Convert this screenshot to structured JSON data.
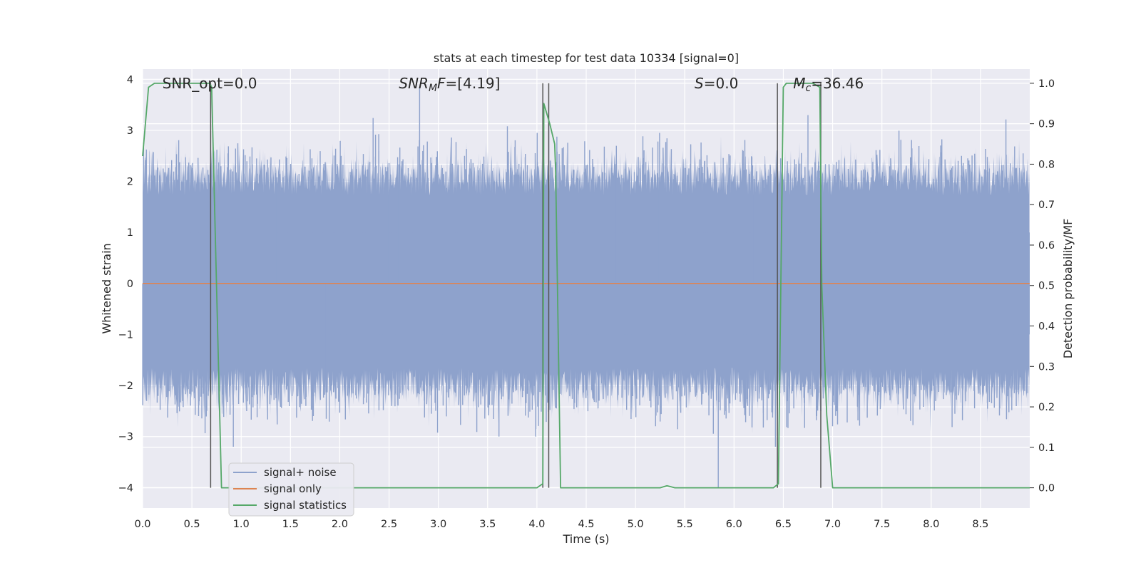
{
  "chart_data": {
    "type": "line",
    "title": "stats at each timestep for test data 10334 [signal=0]",
    "xlabel": "Time (s)",
    "ylabel_left": "Whitened strain",
    "ylabel_right": "Detection probability/MF",
    "xlim": [
      0.0,
      9.0
    ],
    "ylim_left": [
      -4.4,
      4.2
    ],
    "ylim_right": [
      -0.05,
      1.035
    ],
    "x_ticks": [
      0.0,
      0.5,
      1.0,
      1.5,
      2.0,
      2.5,
      3.0,
      3.5,
      4.0,
      4.5,
      5.0,
      5.5,
      6.0,
      6.5,
      7.0,
      7.5,
      8.0,
      8.5
    ],
    "x_tick_labels": [
      "0.0",
      "0.5",
      "1.0",
      "1.5",
      "2.0",
      "2.5",
      "3.0",
      "3.5",
      "4.0",
      "4.5",
      "5.0",
      "5.5",
      "6.0",
      "6.5",
      "7.0",
      "7.5",
      "8.0",
      "8.5"
    ],
    "y_left_ticks": [
      4,
      3,
      2,
      1,
      0,
      -1,
      -2,
      -3,
      -4
    ],
    "y_left_tick_labels": [
      "4",
      "3",
      "2",
      "1",
      "0",
      "−1",
      "−2",
      "−3",
      "−4"
    ],
    "y_right_ticks": [
      1.0,
      0.9,
      0.8,
      0.7,
      0.6,
      0.5,
      0.4,
      0.3,
      0.2,
      0.1,
      0.0
    ],
    "y_right_tick_labels": [
      "1.0",
      "0.9",
      "0.8",
      "0.7",
      "0.6",
      "0.5",
      "0.4",
      "0.3",
      "0.2",
      "0.1",
      "0.0"
    ],
    "grid": true,
    "legend_position": "lower-left",
    "annotations": [
      {
        "text": "SNR_opt=0.0",
        "x": 0.2
      },
      {
        "text": "SNR_MF=[4.19]",
        "x": 2.6,
        "math": "mf"
      },
      {
        "text": "S=0.0",
        "x": 5.6,
        "math": "s"
      },
      {
        "text": "M_c=36.46",
        "x": 6.6,
        "math": "mc"
      }
    ],
    "series": [
      {
        "name": "signal+ noise",
        "axis": "left",
        "color": "#8ea2cc",
        "kind": "noise",
        "sampling_rate": 4096,
        "envelope_low": -2.2,
        "envelope_high": 2.3,
        "notable_peaks": [
          {
            "x": 2.81,
            "y": 3.85
          },
          {
            "x": 4.12,
            "y": 3.2
          },
          {
            "x": 6.75,
            "y": 3.3
          },
          {
            "x": 5.84,
            "y": -4.0
          },
          {
            "x": 0.92,
            "y": -3.2
          },
          {
            "x": 6.42,
            "y": -3.2
          }
        ]
      },
      {
        "name": "signal only",
        "axis": "left",
        "color": "#dd8452",
        "x": [
          0.0,
          9.0
        ],
        "y": [
          0.0,
          0.0
        ]
      },
      {
        "name": "signal statistics",
        "axis": "right",
        "color": "#55a868",
        "x": [
          0.0,
          0.06,
          0.12,
          0.6,
          0.68,
          0.7,
          0.8,
          4.0,
          4.06,
          4.07,
          4.13,
          4.18,
          4.19,
          4.24,
          5.25,
          5.32,
          5.4,
          6.4,
          6.45,
          6.5,
          6.53,
          6.8,
          6.87,
          6.89,
          6.94,
          7.0,
          9.0
        ],
        "y": [
          0.82,
          0.99,
          1.0,
          1.0,
          1.0,
          0.99,
          0.0,
          0.0,
          0.01,
          0.95,
          0.9,
          0.85,
          0.78,
          0.0,
          0.0,
          0.005,
          0.0,
          0.0,
          0.01,
          0.99,
          1.0,
          1.0,
          0.99,
          0.5,
          0.18,
          0.0,
          0.0
        ]
      }
    ],
    "vertical_markers": [
      0.69,
      4.06,
      4.12,
      6.44,
      6.88
    ],
    "marker_color": "#555555",
    "colors": {
      "figure_bg": "#ffffff",
      "axes_bg": "#eaeaf2",
      "grid": "#ffffff",
      "text": "#262626"
    }
  }
}
